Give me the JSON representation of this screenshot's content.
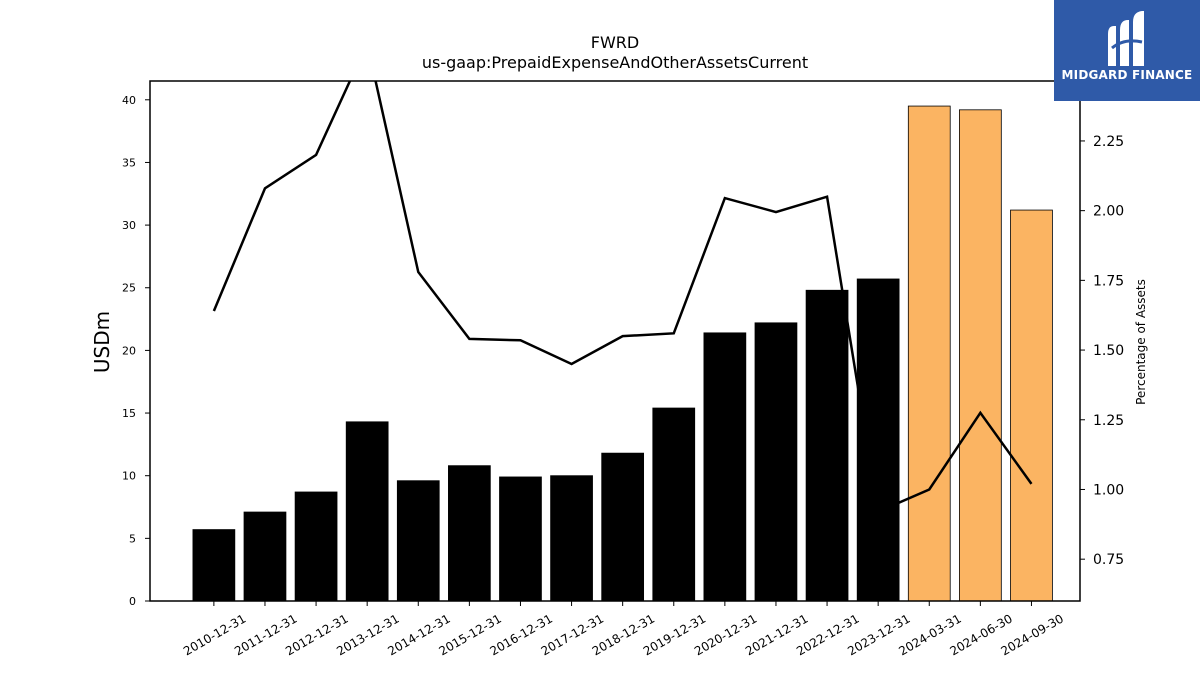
{
  "logo": {
    "text": "MIDGARD FINANCE",
    "bg_color": "#2f5aa8"
  },
  "chart_data": {
    "type": "bar",
    "title": "FWRD",
    "subtitle": "us-gaap:PrepaidExpenseAndOtherAssetsCurrent",
    "ylabel": "USDm",
    "y2label": "Percentage of Assets",
    "ylim": [
      0,
      41.5
    ],
    "y2lim": [
      0.6,
      2.465
    ],
    "yticks": [
      0,
      5,
      10,
      15,
      20,
      25,
      30,
      35,
      40
    ],
    "y2ticks": [
      0.75,
      1.0,
      1.25,
      1.5,
      1.75,
      2.0,
      2.25
    ],
    "categories": [
      "2010-12-31",
      "2011-12-31",
      "2012-12-31",
      "2013-12-31",
      "2014-12-31",
      "2015-12-31",
      "2016-12-31",
      "2017-12-31",
      "2018-12-31",
      "2019-12-31",
      "2020-12-31",
      "2021-12-31",
      "2022-12-31",
      "2023-12-31",
      "2024-03-31",
      "2024-06-30",
      "2024-09-30"
    ],
    "series": [
      {
        "type": "bar",
        "values": [
          5.7,
          7.1,
          8.7,
          14.3,
          9.6,
          10.8,
          9.9,
          10.0,
          11.8,
          15.4,
          21.4,
          22.2,
          24.8,
          25.7,
          39.5,
          39.2,
          31.2
        ],
        "colors": [
          "#000000",
          "#000000",
          "#000000",
          "#000000",
          "#000000",
          "#000000",
          "#000000",
          "#000000",
          "#000000",
          "#000000",
          "#000000",
          "#000000",
          "#000000",
          "#000000",
          "#fbb462",
          "#fbb462",
          "#fbb462"
        ]
      },
      {
        "type": "line",
        "axis": "right",
        "color": "#000000",
        "values": [
          1.64,
          2.08,
          2.2,
          2.6,
          1.78,
          1.54,
          1.535,
          1.45,
          1.55,
          1.56,
          2.045,
          1.995,
          2.05,
          0.92,
          1.0,
          1.275,
          1.02
        ]
      }
    ],
    "grid": false
  }
}
